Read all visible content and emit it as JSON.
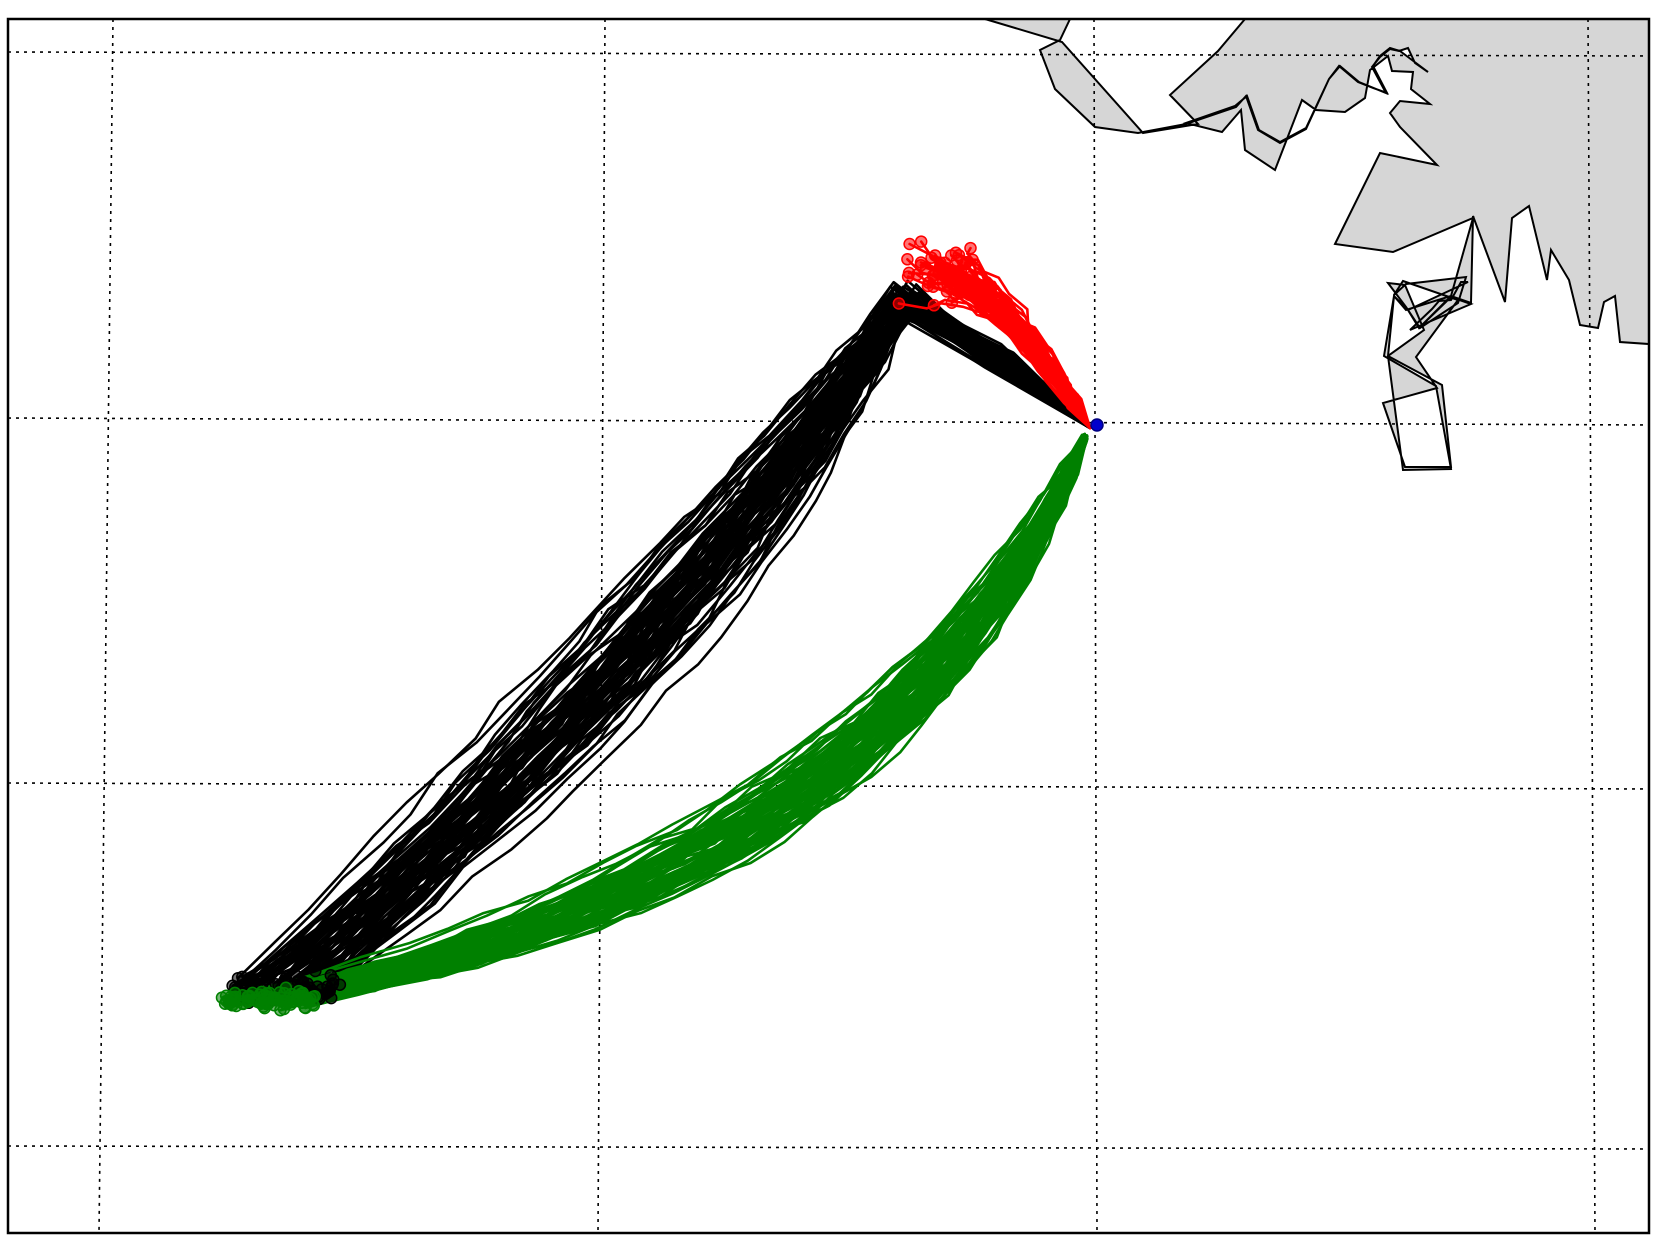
{
  "map": {
    "projection": "lat-lon grid",
    "grid": "dotted",
    "background_color": "#ffffff",
    "land_color": "#d6d6d6",
    "coast_color": "#000000",
    "grid_color": "#000000",
    "frame_color": "#000000"
  },
  "origin": {
    "color": "#0000cc",
    "icon": "release-point-marker"
  },
  "trajectory_groups": [
    {
      "key": "north",
      "color": "#ff0000",
      "end_marker": "circle",
      "member_count": 60
    },
    {
      "key": "west",
      "color": "#000000",
      "end_marker": "circle",
      "member_count": 80
    },
    {
      "key": "southwest",
      "color": "#008000",
      "end_marker": "circle",
      "member_count": 80
    }
  ]
}
